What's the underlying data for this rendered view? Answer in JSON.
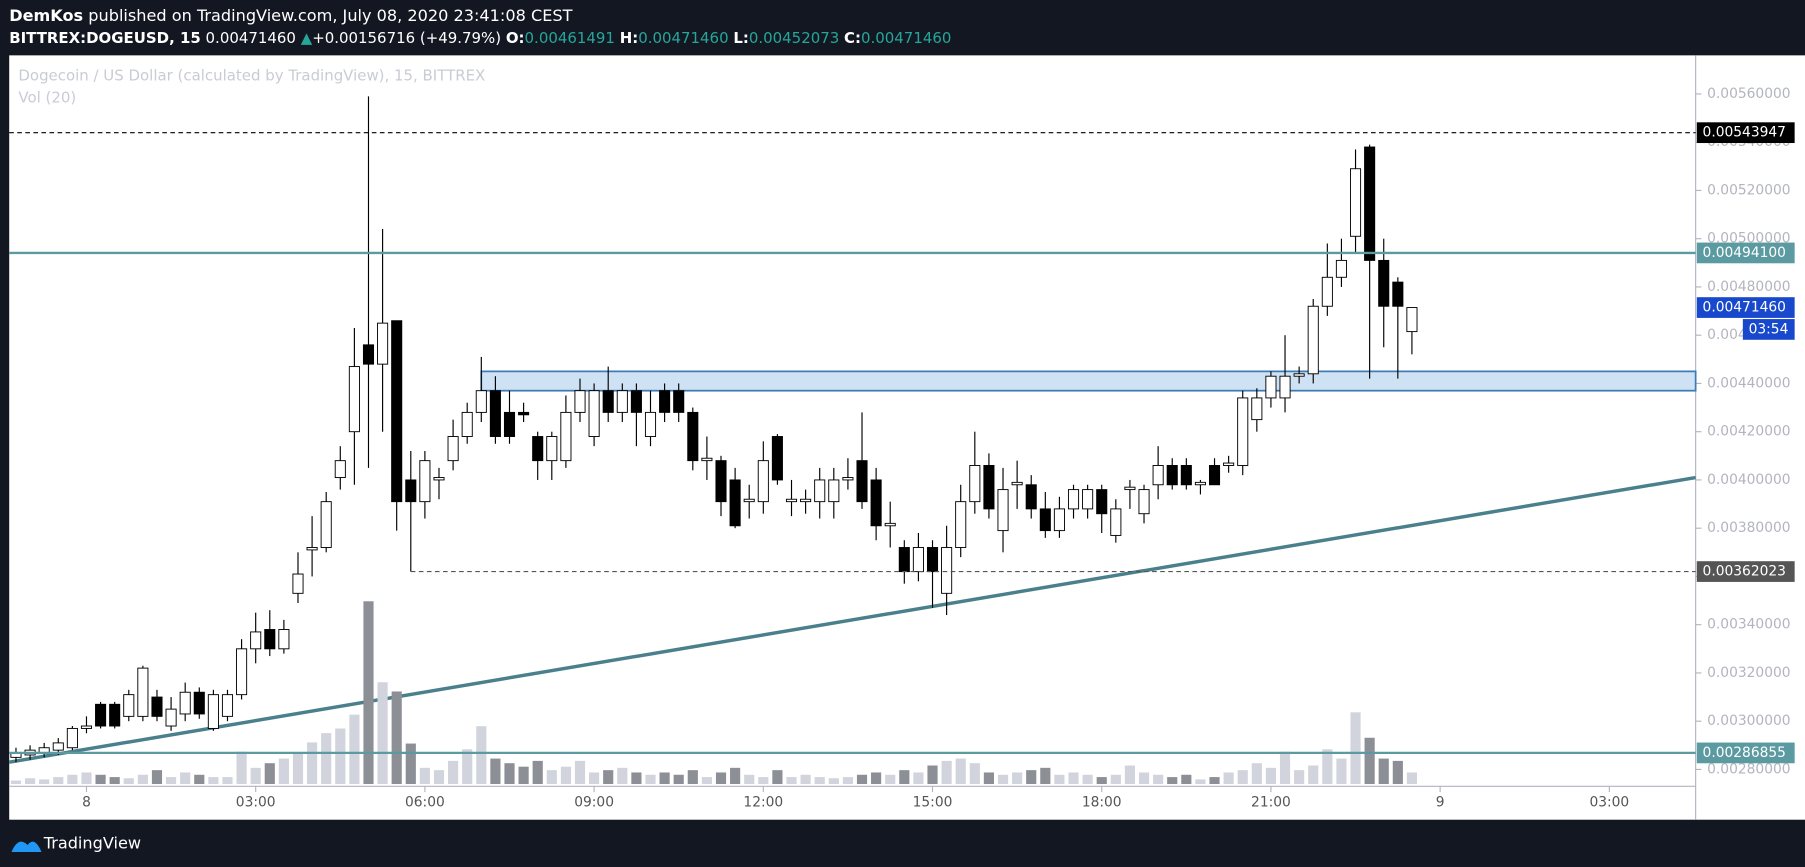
{
  "chart_data": {
    "type": "candlestick",
    "header": {
      "line1_author": "DemKos",
      "line1_rest": "published on TradingView.com, July 08, 2020 23:41:08 CEST",
      "symbol": "BITTREX:DOGEUSD, 15",
      "last": "0.00471460",
      "arrow": "▲",
      "change": "+0.00156716 (+49.79%)",
      "ohlc": [
        {
          "label": "O:",
          "value": "0.00461491"
        },
        {
          "label": "H:",
          "value": "0.00471460"
        },
        {
          "label": "L:",
          "value": "0.00452073"
        },
        {
          "label": "C:",
          "value": "0.00471460"
        }
      ]
    },
    "title": "Dogecoin / US Dollar (calculated by TradingView), 15, BITTREX",
    "volume_label": "Vol (20)",
    "footer": "TradingView",
    "x": [
      -1.25,
      -1,
      -0.75,
      -0.5,
      -0.25,
      0,
      0.25,
      0.5,
      0.75,
      1,
      1.25,
      1.5,
      1.75,
      2,
      2.25,
      2.5,
      2.75,
      3,
      3.25,
      3.5,
      3.75,
      4,
      4.25,
      4.5,
      4.75,
      5,
      5.25,
      5.5,
      5.75,
      6,
      6.25,
      6.5,
      6.75,
      7,
      7.25,
      7.5,
      7.75,
      8,
      8.25,
      8.5,
      8.75,
      9,
      9.25,
      9.5,
      9.75,
      10,
      10.25,
      10.5,
      10.75,
      11,
      11.25,
      11.5,
      11.75,
      12,
      12.25,
      12.5,
      12.75,
      13,
      13.25,
      13.5,
      13.75,
      14,
      14.25,
      14.5,
      14.75,
      15,
      15.25,
      15.5,
      15.75,
      16,
      16.25,
      16.5,
      16.75,
      17,
      17.25,
      17.5,
      17.75,
      18,
      18.25,
      18.5,
      18.75,
      19,
      19.25,
      19.5,
      19.75,
      20,
      20.25,
      20.5,
      20.75,
      21,
      21.25,
      21.5,
      21.75,
      22,
      22.25,
      22.5,
      22.75,
      23,
      23.25,
      23.5
    ],
    "open": [
      0.00285,
      0.00286,
      0.00287,
      0.00288,
      0.00289,
      0.00297,
      0.00307,
      0.00307,
      0.00302,
      0.00302,
      0.0031,
      0.00298,
      0.00303,
      0.00312,
      0.00297,
      0.00302,
      0.00311,
      0.0033,
      0.00338,
      0.0033,
      0.00353,
      0.00371,
      0.00372,
      0.00401,
      0.0042,
      0.00456,
      0.00448,
      0.00466,
      0.004,
      0.00391,
      0.004,
      0.00408,
      0.00418,
      0.00428,
      0.00437,
      0.00428,
      0.00428,
      0.00418,
      0.00408,
      0.00408,
      0.00428,
      0.00418,
      0.00437,
      0.00428,
      0.00437,
      0.00418,
      0.00437,
      0.00437,
      0.00428,
      0.00408,
      0.00408,
      0.004,
      0.00391,
      0.00391,
      0.00418,
      0.00391,
      0.00391,
      0.00391,
      0.00391,
      0.004,
      0.00408,
      0.004,
      0.00381,
      0.00372,
      0.00362,
      0.00372,
      0.00353,
      0.00372,
      0.00391,
      0.00406,
      0.00379,
      0.00398,
      0.00398,
      0.00388,
      0.00379,
      0.00388,
      0.00388,
      0.00396,
      0.00377,
      0.00396,
      0.00386,
      0.00398,
      0.00406,
      0.00406,
      0.00398,
      0.00406,
      0.00406,
      0.00406,
      0.00425,
      0.00434,
      0.00434,
      0.00443,
      0.00444,
      0.00472,
      0.00484,
      0.00501,
      0.00538,
      0.00491,
      0.00482,
      0.00461491
    ],
    "high": [
      0.00289,
      0.0029,
      0.00291,
      0.00293,
      0.00298,
      0.00302,
      0.00308,
      0.00308,
      0.00313,
      0.00323,
      0.00313,
      0.0031,
      0.00316,
      0.00314,
      0.00313,
      0.00313,
      0.00334,
      0.00345,
      0.00346,
      0.00342,
      0.0037,
      0.00385,
      0.00395,
      0.00414,
      0.00463,
      0.00559,
      0.00504,
      0.00466,
      0.00412,
      0.00412,
      0.00405,
      0.00425,
      0.00432,
      0.00451,
      0.00443,
      0.00437,
      0.00432,
      0.0042,
      0.0042,
      0.00435,
      0.00442,
      0.0044,
      0.00447,
      0.0044,
      0.0044,
      0.00437,
      0.0044,
      0.0044,
      0.0043,
      0.00418,
      0.0041,
      0.00405,
      0.00398,
      0.00416,
      0.00419,
      0.004,
      0.00396,
      0.00405,
      0.00405,
      0.00409,
      0.00428,
      0.00405,
      0.00391,
      0.00375,
      0.00378,
      0.00375,
      0.00381,
      0.00398,
      0.0042,
      0.00411,
      0.00405,
      0.00408,
      0.00402,
      0.00395,
      0.00393,
      0.00398,
      0.00398,
      0.00398,
      0.00392,
      0.004,
      0.00398,
      0.00414,
      0.00409,
      0.00409,
      0.004,
      0.00409,
      0.0041,
      0.00437,
      0.00438,
      0.00445,
      0.0046,
      0.00447,
      0.00475,
      0.00498,
      0.005,
      0.00537,
      0.00539,
      0.005,
      0.00484,
      0.0047146
    ],
    "low": [
      0.00283,
      0.00284,
      0.00285,
      0.00286,
      0.00288,
      0.00295,
      0.00297,
      0.00297,
      0.003,
      0.003,
      0.003,
      0.00296,
      0.003,
      0.00301,
      0.00296,
      0.003,
      0.00309,
      0.00324,
      0.00327,
      0.00328,
      0.00349,
      0.0036,
      0.0037,
      0.00396,
      0.00398,
      0.00405,
      0.0042,
      0.00379,
      0.00362,
      0.00384,
      0.00392,
      0.00404,
      0.00415,
      0.00424,
      0.00415,
      0.00415,
      0.00424,
      0.004,
      0.004,
      0.00405,
      0.00424,
      0.00414,
      0.00424,
      0.00424,
      0.00414,
      0.00414,
      0.00424,
      0.00424,
      0.00404,
      0.004,
      0.00385,
      0.0038,
      0.00384,
      0.00386,
      0.00398,
      0.00385,
      0.00386,
      0.00384,
      0.00384,
      0.00396,
      0.00388,
      0.00375,
      0.00372,
      0.00357,
      0.00358,
      0.00347,
      0.00344,
      0.00368,
      0.00386,
      0.00384,
      0.0037,
      0.00388,
      0.00384,
      0.00376,
      0.00376,
      0.00384,
      0.00384,
      0.00378,
      0.00374,
      0.00388,
      0.00382,
      0.00392,
      0.00396,
      0.00396,
      0.00394,
      0.00398,
      0.00403,
      0.00402,
      0.0042,
      0.0043,
      0.00428,
      0.0044,
      0.0044,
      0.00468,
      0.0048,
      0.00494,
      0.00442,
      0.00455,
      0.00442,
      0.00452073
    ],
    "close": [
      0.00287,
      0.00288,
      0.00289,
      0.00291,
      0.00297,
      0.00298,
      0.00298,
      0.00298,
      0.00311,
      0.00322,
      0.00302,
      0.00305,
      0.00312,
      0.00303,
      0.00311,
      0.00311,
      0.0033,
      0.00337,
      0.0033,
      0.00338,
      0.00361,
      0.00372,
      0.00391,
      0.00408,
      0.00447,
      0.00448,
      0.00465,
      0.00391,
      0.00391,
      0.00408,
      0.00401,
      0.00418,
      0.00428,
      0.00437,
      0.00418,
      0.00418,
      0.00427,
      0.00408,
      0.00418,
      0.00428,
      0.00437,
      0.00437,
      0.00428,
      0.00437,
      0.00428,
      0.00428,
      0.00428,
      0.00428,
      0.00408,
      0.00409,
      0.00391,
      0.00381,
      0.00392,
      0.00408,
      0.004,
      0.00392,
      0.00392,
      0.004,
      0.004,
      0.00401,
      0.00391,
      0.00381,
      0.00382,
      0.00362,
      0.00372,
      0.00362,
      0.00372,
      0.00391,
      0.00406,
      0.00388,
      0.00396,
      0.00399,
      0.00388,
      0.00379,
      0.00388,
      0.00396,
      0.00396,
      0.00386,
      0.00388,
      0.00397,
      0.00396,
      0.00406,
      0.00398,
      0.00398,
      0.00399,
      0.00398,
      0.00407,
      0.00434,
      0.00434,
      0.00443,
      0.00443,
      0.00444,
      0.00472,
      0.00484,
      0.00491,
      0.00529,
      0.00491,
      0.00472,
      0.00472,
      0.0047146
    ],
    "volume": [
      3,
      5,
      4,
      6,
      8,
      10,
      8,
      6,
      5,
      8,
      12,
      6,
      10,
      8,
      6,
      6,
      28,
      14,
      18,
      22,
      26,
      36,
      44,
      48,
      60,
      158,
      88,
      80,
      35,
      14,
      12,
      20,
      30,
      50,
      22,
      18,
      15,
      20,
      12,
      15,
      20,
      10,
      12,
      14,
      10,
      8,
      10,
      8,
      12,
      6,
      10,
      14,
      8,
      6,
      12,
      6,
      8,
      6,
      5,
      6,
      8,
      10,
      8,
      12,
      10,
      16,
      20,
      22,
      18,
      10,
      8,
      10,
      12,
      14,
      8,
      10,
      8,
      6,
      8,
      16,
      10,
      8,
      6,
      8,
      4,
      6,
      10,
      12,
      18,
      14,
      28,
      12,
      16,
      30,
      22,
      62,
      40,
      22,
      20,
      10
    ],
    "up_color": "#ffffff",
    "down_color": "#000000",
    "vol_up_color": "#d1d4dc",
    "vol_down_color": "#8c8f96",
    "xlim": [
      -1.37,
      28.53
    ],
    "xticks": [
      {
        "value": 0,
        "label": "8"
      },
      {
        "value": 3,
        "label": "03:00"
      },
      {
        "value": 6,
        "label": "06:00"
      },
      {
        "value": 9,
        "label": "09:00"
      },
      {
        "value": 12,
        "label": "12:00"
      },
      {
        "value": 15,
        "label": "15:00"
      },
      {
        "value": 18,
        "label": "18:00"
      },
      {
        "value": 21,
        "label": "21:00"
      },
      {
        "value": 24,
        "label": "9"
      },
      {
        "value": 27,
        "label": "03:00"
      }
    ],
    "ylim": [
      0.00273,
      0.00576
    ],
    "yticks": [
      {
        "value": 0.0056,
        "label": "0.00560000"
      },
      {
        "value": 0.0054,
        "label": "0.00540000"
      },
      {
        "value": 0.0052,
        "label": "0.00520000"
      },
      {
        "value": 0.005,
        "label": "0.00500000"
      },
      {
        "value": 0.0048,
        "label": "0.00480000"
      },
      {
        "value": 0.0046,
        "label": "0.00460000"
      },
      {
        "value": 0.0044,
        "label": "0.00440000"
      },
      {
        "value": 0.0042,
        "label": "0.00420000"
      },
      {
        "value": 0.004,
        "label": "0.00400000"
      },
      {
        "value": 0.0038,
        "label": "0.00380000"
      },
      {
        "value": 0.0036,
        "label": "0.00360000"
      },
      {
        "value": 0.0034,
        "label": "0.00340000"
      },
      {
        "value": 0.0032,
        "label": "0.00320000"
      },
      {
        "value": 0.003,
        "label": "0.00300000"
      },
      {
        "value": 0.0028,
        "label": "0.00280000"
      }
    ],
    "price_lines": [
      {
        "value": 0.00543947,
        "style": "dashed",
        "color": "#000000"
      },
      {
        "value": 0.004941,
        "label": "0.00494100",
        "style": "solid",
        "color": "#5b9aa0"
      },
      {
        "value": 0.00362023,
        "style": "dashed",
        "color": "#555555",
        "x_start": 5.75
      },
      {
        "value": 0.00286855,
        "label": "0.00286855",
        "style": "solid",
        "color": "#5b9aa0"
      }
    ],
    "current_price": {
      "value": 0.0047146,
      "label": "0.00471460",
      "countdown": "03:54",
      "color": "#1848cc"
    },
    "zone": {
      "x_start": 7,
      "low": 0.00437,
      "high": 0.00445,
      "fill": "#cfe2f3",
      "stroke": "#3d7ab8"
    },
    "trend_line": {
      "points": [
        [
          -1.37,
          0.00283
        ],
        [
          28.53,
          0.00401
        ]
      ],
      "color": "#4a7f8c"
    }
  }
}
